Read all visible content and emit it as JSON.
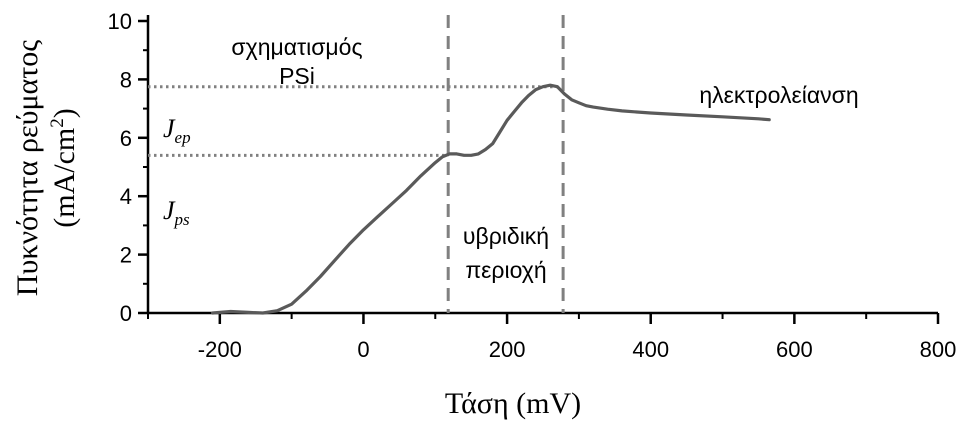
{
  "chart_data": {
    "type": "line",
    "xlabel": "Τάση (mV)",
    "ylabel_line1": "Πυκνότητα ρεύματος",
    "ylabel_line2_prefix": "(mA/cm",
    "ylabel_line2_sup": "2",
    "ylabel_line2_suffix": ")",
    "xlim": [
      -300,
      800
    ],
    "ylim": [
      0,
      10
    ],
    "x_ticks": [
      -200,
      0,
      200,
      400,
      600,
      800
    ],
    "y_ticks": [
      0,
      2,
      4,
      6,
      8,
      10
    ],
    "grid": false,
    "legend": "none",
    "line_color": "#5a5a5a",
    "guide_color": "#808080",
    "series": [
      {
        "x": [
          -210,
          -185,
          -160,
          -140,
          -120,
          -100,
          -80,
          -60,
          -40,
          -20,
          0,
          20,
          40,
          60,
          80,
          100,
          110,
          120,
          130,
          140,
          150,
          160,
          170,
          180,
          190,
          200,
          210,
          220,
          230,
          240,
          250,
          260,
          270,
          280,
          290,
          300,
          310,
          320,
          340,
          360,
          400,
          450,
          500,
          550,
          565
        ],
        "y": [
          0.0,
          0.05,
          0.02,
          0.0,
          0.08,
          0.3,
          0.75,
          1.25,
          1.8,
          2.35,
          2.85,
          3.3,
          3.75,
          4.2,
          4.7,
          5.15,
          5.35,
          5.45,
          5.45,
          5.4,
          5.4,
          5.45,
          5.6,
          5.8,
          6.2,
          6.6,
          6.9,
          7.2,
          7.45,
          7.65,
          7.75,
          7.8,
          7.75,
          7.5,
          7.3,
          7.2,
          7.1,
          7.05,
          6.98,
          6.92,
          6.85,
          6.78,
          6.72,
          6.65,
          6.62
        ]
      }
    ],
    "vertical_dashed_lines_x": [
      118,
      278
    ],
    "horizontal_dotted_lines": [
      {
        "y": 7.75,
        "x_from": -300,
        "x_to": 270,
        "label_main": "J",
        "label_sub": "ep"
      },
      {
        "y": 5.4,
        "x_from": -300,
        "x_to": 118,
        "label_main": "J",
        "label_sub": "ps"
      }
    ],
    "annotations": [
      {
        "lines": [
          "σχηματισμός",
          "PSi"
        ]
      },
      {
        "lines": [
          "υβριδική",
          "περιοχή"
        ]
      },
      {
        "lines": [
          "ηλεκτρολείανση"
        ]
      }
    ]
  }
}
